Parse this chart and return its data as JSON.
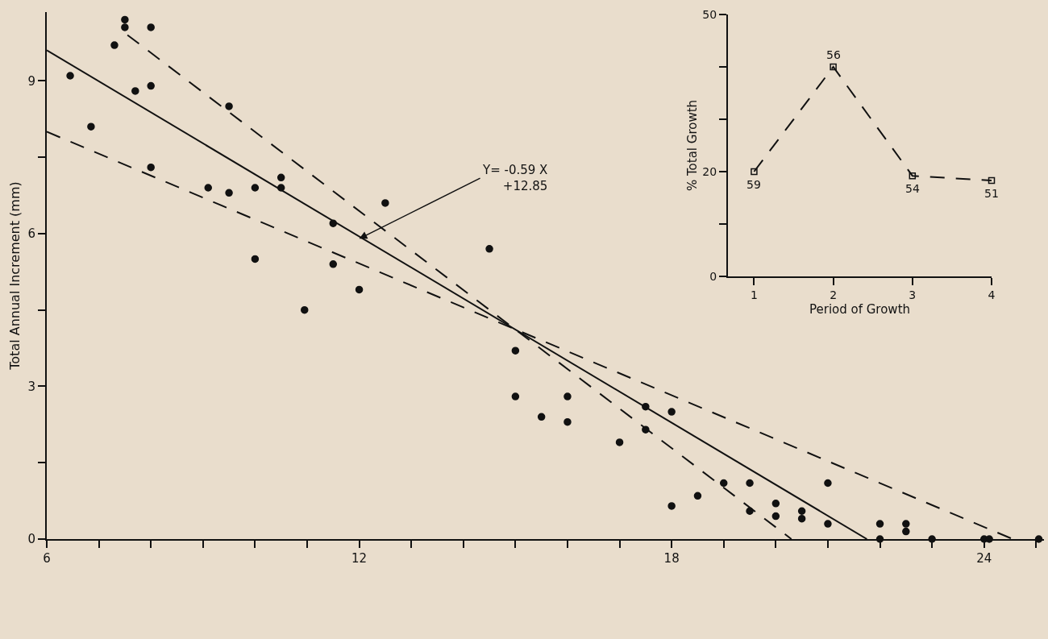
{
  "chart_data": [
    {
      "type": "scatter",
      "ylabel": "Total Annual Increment (mm)",
      "xlim": [
        6,
        25.15
      ],
      "ylim": [
        0,
        10.35
      ],
      "xticks": [
        6,
        {
          "value": 7,
          "label": null
        },
        {
          "value": 8,
          "label": null
        },
        {
          "value": 9,
          "label": null
        },
        {
          "value": 10,
          "label": null
        },
        {
          "value": 11,
          "label": null
        },
        12,
        {
          "value": 13,
          "label": null
        },
        {
          "value": 14,
          "label": null
        },
        {
          "value": 15,
          "label": null
        },
        {
          "value": 16,
          "label": null
        },
        {
          "value": 17,
          "label": null
        },
        18,
        {
          "value": 19,
          "label": null
        },
        {
          "value": 20,
          "label": null
        },
        {
          "value": 21,
          "label": null
        },
        {
          "value": 22,
          "label": null
        },
        {
          "value": 23,
          "label": null
        },
        24,
        {
          "value": 25,
          "label": null
        }
      ],
      "yticks": [
        0,
        {
          "value": 1.5,
          "label": null
        },
        3,
        {
          "value": 4.5,
          "label": null
        },
        6,
        {
          "value": 7.5,
          "label": null
        },
        9
      ],
      "marker": "circle",
      "series": [
        {
          "color": "#111111",
          "x": [
            6.45,
            6.85,
            7.3,
            7.5,
            7.5,
            7.7,
            8,
            8,
            8,
            9.1,
            9.5,
            9.5,
            10,
            10,
            10.5,
            10.5,
            10.95,
            11.5,
            11.5,
            12,
            12.5,
            14.5,
            15,
            15,
            15.5,
            16,
            16,
            17,
            17.5,
            17.5,
            18,
            18,
            18.5,
            19,
            19.5,
            19.5,
            20,
            20,
            20.5,
            20.5,
            21,
            21,
            22,
            22,
            22.5,
            22.5,
            23,
            24,
            24.1,
            25.05
          ],
          "values": [
            9.1,
            8.1,
            9.7,
            10.05,
            10.2,
            8.8,
            8.9,
            10.05,
            7.3,
            6.9,
            6.8,
            8.5,
            6.9,
            5.5,
            7.1,
            6.9,
            4.5,
            6.2,
            5.4,
            4.9,
            6.6,
            5.7,
            3.7,
            2.8,
            2.4,
            2.8,
            2.3,
            1.9,
            2.6,
            2.15,
            2.5,
            0.65,
            0.85,
            1.1,
            1.1,
            0.55,
            0.7,
            0.45,
            0.55,
            0.4,
            1.1,
            0.3,
            0.3,
            0,
            0.3,
            0.15,
            0,
            0,
            0,
            0
          ]
        },
        {
          "type": "line",
          "marker": "none",
          "line_style": "solid",
          "color": "#111111",
          "x": [
            6,
            21.75
          ],
          "values": [
            9.6,
            0
          ]
        },
        {
          "type": "line",
          "marker": "none",
          "line_style": "dashed",
          "color": "#111111",
          "x": [
            7.55,
            20.3
          ],
          "values": [
            9.9,
            0
          ]
        },
        {
          "type": "line",
          "marker": "none",
          "line_style": "dashed",
          "color": "#111111",
          "x": [
            6,
            24.55
          ],
          "values": [
            8.0,
            0
          ]
        }
      ],
      "annotations": [
        {
          "text": "Y= -0.59 X\n+12.85",
          "x": 12,
          "y": 5.9
        }
      ]
    },
    {
      "type": "line",
      "xlabel": "Period of Growth",
      "ylabel": "% Total Growth",
      "xlim": [
        0.67,
        4
      ],
      "ylim": [
        0,
        50
      ],
      "xticks": [
        1,
        2,
        3,
        4
      ],
      "yticks": [
        0,
        {
          "value": 10,
          "label": null
        },
        20,
        {
          "value": 30,
          "label": null
        },
        {
          "value": 40,
          "label": null
        },
        50
      ],
      "marker": "square",
      "line_style": "dashed",
      "series": [
        {
          "color": "#111111",
          "x": [
            1,
            2,
            3,
            4
          ],
          "values": [
            20,
            40,
            19.2,
            18.3
          ]
        }
      ],
      "annotations": [
        {
          "text": "59",
          "x": 1,
          "y": 20
        },
        {
          "text": "56",
          "x": 2,
          "y": 40
        },
        {
          "text": "54",
          "x": 3,
          "y": 19.2
        },
        {
          "text": "51",
          "x": 4,
          "y": 18.3
        }
      ]
    }
  ]
}
